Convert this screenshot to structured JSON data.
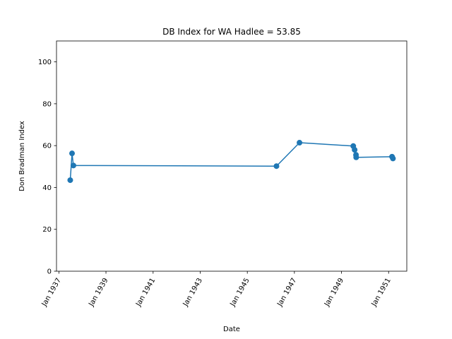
{
  "chart_data": {
    "type": "line",
    "title": "DB Index for WA Hadlee = 53.85",
    "xlabel": "Date",
    "ylabel": "Don Bradman Index",
    "ylim": [
      0,
      110
    ],
    "yticks": [
      0,
      20,
      40,
      60,
      80,
      100
    ],
    "xlim": [
      "1936-11-25",
      "1951-10-10"
    ],
    "xticks": [
      "1937-01-01",
      "1939-01-01",
      "1941-01-01",
      "1943-01-01",
      "1945-01-01",
      "1947-01-01",
      "1949-01-01",
      "1951-01-01"
    ],
    "xtick_labels": [
      "Jan 1937",
      "Jan 1939",
      "Jan 1941",
      "Jan 1943",
      "Jan 1945",
      "Jan 1947",
      "Jan 1949",
      "Jan 1951"
    ],
    "grid": false,
    "series": [
      {
        "color": "#1f77b4",
        "marker": "circle",
        "x": [
          "1937-06-26",
          "1937-07-24",
          "1937-08-14",
          "1946-03-29",
          "1947-03-21",
          "1949-07-02",
          "1949-07-23",
          "1949-08-13",
          "1949-08-16",
          "1951-02-23",
          "1951-03-09"
        ],
        "y": [
          43.5,
          56.3,
          50.5,
          50.2,
          61.4,
          59.8,
          58.0,
          55.6,
          54.4,
          54.7,
          53.85
        ]
      }
    ]
  }
}
